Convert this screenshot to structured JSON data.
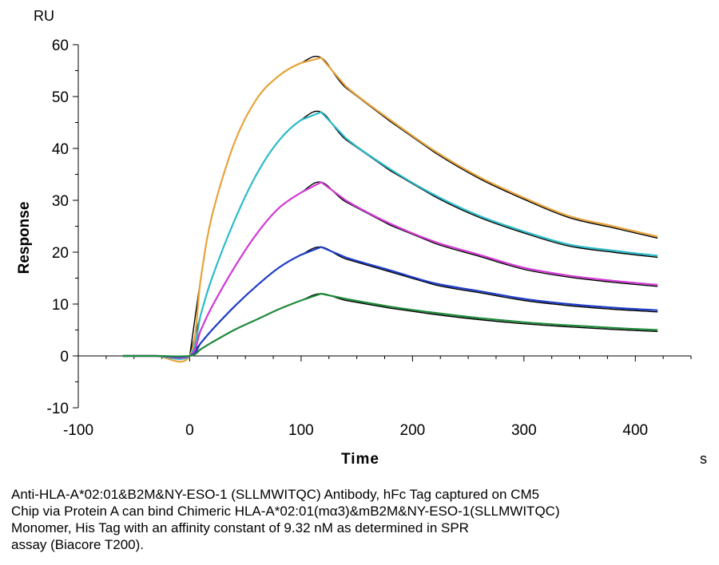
{
  "chart_data": {
    "type": "line",
    "title": "",
    "xlabel": "Time",
    "ylabel": "Response",
    "y_unit": "RU",
    "x_unit": "s",
    "xlim": [
      -100,
      450
    ],
    "ylim": [
      -10,
      60
    ],
    "x_ticks": [
      -100,
      0,
      100,
      200,
      300,
      400
    ],
    "y_ticks": [
      -10,
      0,
      10,
      20,
      30,
      40,
      50,
      60
    ],
    "grid": false,
    "legend": "none",
    "series": [
      {
        "color": "#e8a33a",
        "x": [
          -60,
          -30,
          0,
          10,
          20,
          40,
          60,
          80,
          100,
          118,
          140,
          180,
          220,
          260,
          300,
          340,
          380,
          420
        ],
        "y": [
          0,
          0,
          0,
          15,
          27,
          41,
          49.5,
          54,
          56.5,
          57.5,
          52,
          45.5,
          39.5,
          34.5,
          30.5,
          27,
          25,
          23
        ]
      },
      {
        "color": "#2bbbc8",
        "x": [
          -60,
          -30,
          0,
          10,
          20,
          40,
          60,
          80,
          100,
          118,
          140,
          180,
          220,
          260,
          300,
          340,
          380,
          420
        ],
        "y": [
          0,
          0,
          0,
          8,
          15,
          26,
          35,
          41.5,
          45.5,
          47,
          42,
          36,
          31,
          27,
          24,
          21.5,
          20.3,
          19.3
        ]
      },
      {
        "color": "#d23ad6",
        "x": [
          -60,
          -30,
          0,
          10,
          20,
          40,
          60,
          80,
          100,
          118,
          140,
          180,
          220,
          260,
          300,
          340,
          380,
          420
        ],
        "y": [
          0,
          0,
          0,
          5,
          9.5,
          17,
          23.5,
          28.5,
          31.5,
          33.5,
          30,
          25.5,
          22,
          19.5,
          17,
          15.5,
          14.5,
          13.7
        ]
      },
      {
        "color": "#1f3cc8",
        "x": [
          -60,
          -30,
          0,
          10,
          20,
          40,
          60,
          80,
          100,
          118,
          140,
          180,
          220,
          260,
          300,
          340,
          380,
          420
        ],
        "y": [
          0,
          0,
          0,
          2.5,
          5,
          9.5,
          13.5,
          17,
          19.5,
          21,
          19,
          16.5,
          14,
          12.5,
          11,
          10,
          9.3,
          8.8
        ]
      },
      {
        "color": "#1e8a3a",
        "x": [
          -60,
          -30,
          0,
          10,
          20,
          40,
          60,
          80,
          100,
          118,
          140,
          180,
          220,
          260,
          300,
          340,
          380,
          420
        ],
        "y": [
          0,
          0,
          0,
          1.3,
          2.6,
          5,
          7,
          9,
          10.7,
          12,
          11,
          9.5,
          8.3,
          7.3,
          6.5,
          5.9,
          5.4,
          5
        ]
      }
    ]
  },
  "caption": "Anti-HLA-A*02:01&B2M&NY-ESO-1 (SLLMWITQC) Antibody, hFc Tag captured on CM5\nChip via Protein A can bind Chimeric HLA-A*02:01(mα3)&mB2M&NY-ESO-1(SLLMWITQC)\nMonomer, His Tag with an affinity constant of 9.32 nM as determined in SPR\nassay (Biacore T200)."
}
